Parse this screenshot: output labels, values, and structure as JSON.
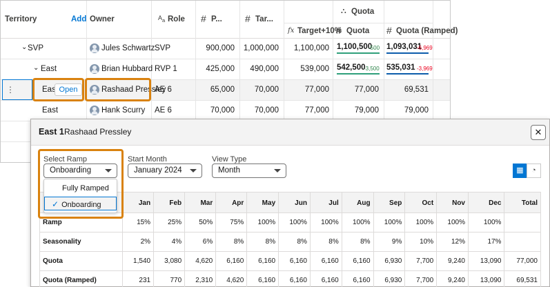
{
  "grid": {
    "headers": {
      "territory": "Territory",
      "add": "Add",
      "owner": "Owner",
      "role": "Role",
      "p": "P...",
      "tar": "Tar...",
      "quota_group": "Quota",
      "target10": "Target+10%",
      "quota": "Quota",
      "quota_ramped": "Quota (Ramped)"
    },
    "rows": [
      {
        "territory": "SVP",
        "owner": "Jules Schwartz",
        "role": "SVP",
        "p": "900,000",
        "tar": "1,000,000",
        "target10": "1,100,000",
        "quota": "1,100,500",
        "quota_delta": "-500",
        "quota_ramped": "1,093,031",
        "ramped_delta": "-6,969"
      },
      {
        "territory": "East",
        "owner": "Brian Hubbard",
        "role": "RVP 1",
        "p": "425,000",
        "tar": "490,000",
        "target10": "539,000",
        "quota": "542,500",
        "quota_delta": "-3,500",
        "quota_ramped": "535,031",
        "ramped_delta": "-3,969"
      },
      {
        "territory": "East",
        "open": "Open",
        "owner": "Rashaad Pressley",
        "role": "AE 6",
        "p": "65,000",
        "tar": "70,000",
        "target10": "77,000",
        "quota": "77,000",
        "quota_ramped": "69,531"
      },
      {
        "territory": "East",
        "owner": "Hank Scurry",
        "role": "AE 6",
        "p": "70,000",
        "tar": "70,000",
        "target10": "77,000",
        "quota": "79,000",
        "quota_ramped": "79,000"
      }
    ]
  },
  "modal": {
    "title": "East 1",
    "subtitle": "Rashaad Pressley",
    "close": "✕",
    "select_ramp": {
      "label": "Select Ramp",
      "value": "Onboarding",
      "options": [
        "Fully Ramped",
        "Onboarding"
      ],
      "check": "✓"
    },
    "start_month": {
      "label": "Start Month",
      "value": "January 2024"
    },
    "view_type": {
      "label": "View Type",
      "value": "Month"
    },
    "table": {
      "months": [
        "Jan",
        "Feb",
        "Mar",
        "Apr",
        "May",
        "Jun",
        "Jul",
        "Aug",
        "Sep",
        "Oct",
        "Nov",
        "Dec",
        "Total"
      ],
      "rows": [
        {
          "label": "Ramp",
          "values": [
            "15%",
            "25%",
            "50%",
            "75%",
            "100%",
            "100%",
            "100%",
            "100%",
            "100%",
            "100%",
            "100%",
            "100%",
            ""
          ]
        },
        {
          "label": "Seasonality",
          "values": [
            "2%",
            "4%",
            "6%",
            "8%",
            "8%",
            "8%",
            "8%",
            "8%",
            "9%",
            "10%",
            "12%",
            "17%",
            ""
          ]
        },
        {
          "label": "Quota",
          "values": [
            "1,540",
            "3,080",
            "4,620",
            "6,160",
            "6,160",
            "6,160",
            "6,160",
            "6,160",
            "6,930",
            "7,700",
            "9,240",
            "13,090",
            "77,000"
          ]
        },
        {
          "label": "Quota (Ramped)",
          "values": [
            "231",
            "770",
            "2,310",
            "4,620",
            "6,160",
            "6,160",
            "6,160",
            "6,160",
            "6,930",
            "7,700",
            "9,240",
            "13,090",
            "69,531"
          ]
        }
      ]
    }
  },
  "colors": {
    "accent": "#0176d3",
    "highlight": "#d9820f",
    "positive": "#2e844a",
    "negative": "#ea001e"
  }
}
